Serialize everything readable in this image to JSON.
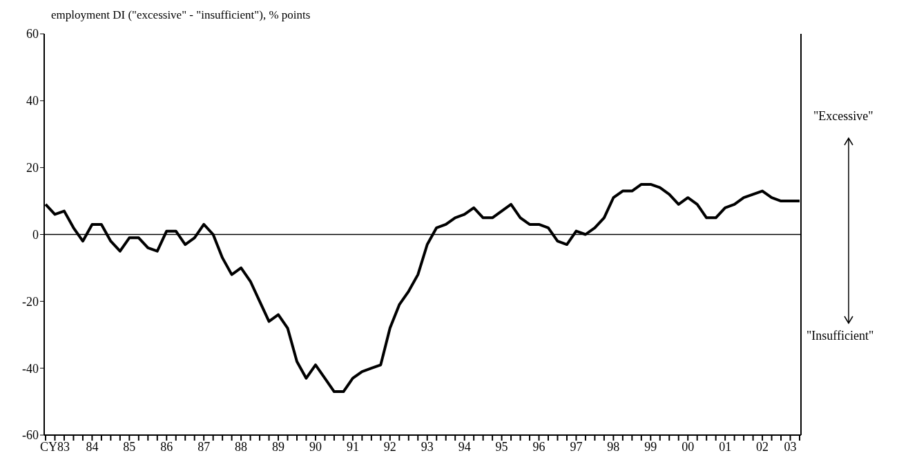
{
  "chart_data": {
    "type": "line",
    "ylabel": "employment DI (\"excessive\" - \"insufficient\"), % points",
    "categories": [
      null,
      "CY83",
      null,
      null,
      null,
      "84",
      null,
      null,
      null,
      "85",
      null,
      null,
      null,
      "86",
      null,
      null,
      null,
      "87",
      null,
      null,
      null,
      "88",
      null,
      null,
      null,
      "89",
      null,
      null,
      null,
      "90",
      null,
      null,
      null,
      "91",
      null,
      null,
      null,
      "92",
      null,
      null,
      null,
      "93",
      null,
      null,
      null,
      "94",
      null,
      null,
      null,
      "95",
      null,
      null,
      null,
      "96",
      null,
      null,
      null,
      "97",
      null,
      null,
      null,
      "98",
      null,
      null,
      null,
      "99",
      null,
      null,
      null,
      "00",
      null,
      null,
      null,
      "01",
      null,
      null,
      null,
      "02",
      null,
      null,
      "03",
      null
    ],
    "series": [
      {
        "color": "#000000",
        "values": [
          9,
          6,
          7,
          2,
          -2,
          3,
          3,
          -2,
          -5,
          -1,
          -1,
          -4,
          -5,
          1,
          1,
          -3,
          -1,
          3,
          0,
          -7,
          -12,
          -10,
          -14,
          -20,
          -26,
          -24,
          -28,
          -38,
          -43,
          -39,
          -43,
          -47,
          -47,
          -43,
          -41,
          -40,
          -39,
          -28,
          -21,
          -17,
          -12,
          -3,
          2,
          3,
          5,
          6,
          8,
          5,
          5,
          7,
          9,
          5,
          3,
          3,
          2,
          -2,
          -3,
          1,
          0,
          2,
          5,
          11,
          13,
          13,
          15,
          15,
          14,
          12,
          9,
          11,
          9,
          5,
          5,
          8,
          9,
          11,
          12,
          13,
          11,
          10,
          10,
          10
        ]
      }
    ],
    "ylim": [
      -60,
      60
    ],
    "yticks": [
      -60,
      -40,
      -20,
      0,
      20,
      40,
      60
    ],
    "marker": "none",
    "line_style": "solid",
    "ref_lines": [
      {
        "axis": "y",
        "value": 0,
        "color": "#000000"
      }
    ],
    "annotations": [
      "\"Excessive\"",
      "\"Insufficient\""
    ]
  }
}
